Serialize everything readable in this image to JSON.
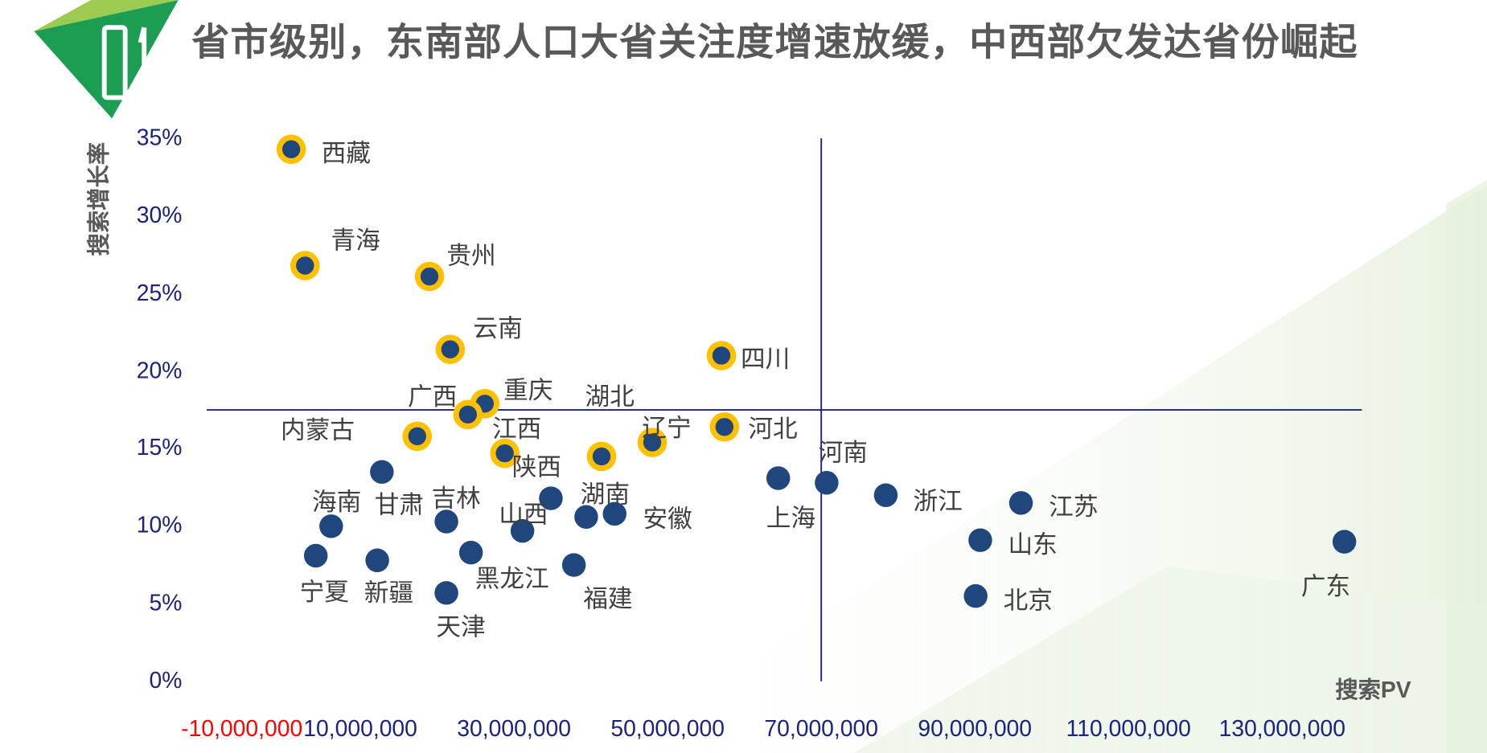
{
  "header": {
    "badge_number": "01",
    "title": "省市级别，东南部人口大省关注度增速放缓，中西部欠发达省份崛起"
  },
  "colors": {
    "dot": "#1f477d",
    "highlight_ring": "#ffc000",
    "axis": "#1a237e",
    "negative_tick": "#ff0000",
    "brand_green": "#1b9e52",
    "brand_light_green": "#9ccb52"
  },
  "chart_data": {
    "type": "scatter",
    "title": "省市级别，东南部人口大省关注度增速放缓，中西部欠发达省份崛起",
    "xlabel": "搜索PV",
    "ylabel": "搜索增长率",
    "xlim": [
      -10000000,
      140000000
    ],
    "ylim": [
      0,
      35
    ],
    "x_ticks": [
      "-10,000,000",
      "10,000,000",
      "30,000,000",
      "50,000,000",
      "70,000,000",
      "90,000,000",
      "110,000,000",
      "130,000,000"
    ],
    "x_tick_values": [
      -10000000,
      10000000,
      30000000,
      50000000,
      70000000,
      90000000,
      110000000,
      130000000
    ],
    "y_ticks": [
      "0%",
      "5%",
      "10%",
      "15%",
      "20%",
      "25%",
      "30%",
      "35%"
    ],
    "y_tick_values": [
      0,
      5,
      10,
      15,
      20,
      25,
      30,
      35
    ],
    "reference_lines": {
      "x": 70000000,
      "y": 17.5
    },
    "points": [
      {
        "name": "西藏",
        "x": 1000000,
        "y": 34.3,
        "highlight": true
      },
      {
        "name": "青海",
        "x": 2800000,
        "y": 26.8,
        "highlight": true
      },
      {
        "name": "贵州",
        "x": 19000000,
        "y": 26.1,
        "highlight": true
      },
      {
        "name": "云南",
        "x": 21700000,
        "y": 21.4,
        "highlight": true
      },
      {
        "name": "四川",
        "x": 57000000,
        "y": 21.0,
        "highlight": true
      },
      {
        "name": "重庆",
        "x": 26200000,
        "y": 17.9,
        "highlight": true
      },
      {
        "name": "广西",
        "x": 24000000,
        "y": 17.2,
        "highlight": true
      },
      {
        "name": "内蒙古",
        "x": 17400000,
        "y": 15.8,
        "highlight": true
      },
      {
        "name": "江西",
        "x": 28800000,
        "y": 14.7,
        "highlight": true
      },
      {
        "name": "湖北",
        "x": 41400000,
        "y": 14.5,
        "highlight": true
      },
      {
        "name": "辽宁",
        "x": 48000000,
        "y": 15.4,
        "highlight": true
      },
      {
        "name": "河北",
        "x": 57400000,
        "y": 16.4,
        "highlight": true
      },
      {
        "name": "甘肃",
        "x": 12800000,
        "y": 13.5,
        "highlight": false
      },
      {
        "name": "海南",
        "x": 6200000,
        "y": 10.0,
        "highlight": false
      },
      {
        "name": "吉林",
        "x": 21200000,
        "y": 10.3,
        "highlight": false
      },
      {
        "name": "山西",
        "x": 31100000,
        "y": 9.7,
        "highlight": false
      },
      {
        "name": "陕西",
        "x": 34800000,
        "y": 11.8,
        "highlight": false
      },
      {
        "name": "湖南",
        "x": 39400000,
        "y": 10.6,
        "highlight": false
      },
      {
        "name": "安徽",
        "x": 43100000,
        "y": 10.8,
        "highlight": false
      },
      {
        "name": "宁夏",
        "x": 4200000,
        "y": 8.1,
        "highlight": false
      },
      {
        "name": "新疆",
        "x": 12200000,
        "y": 7.8,
        "highlight": false
      },
      {
        "name": "黑龙江",
        "x": 24400000,
        "y": 8.3,
        "highlight": false
      },
      {
        "name": "福建",
        "x": 37800000,
        "y": 7.5,
        "highlight": false
      },
      {
        "name": "天津",
        "x": 21200000,
        "y": 5.7,
        "highlight": false
      },
      {
        "name": "上海",
        "x": 64400000,
        "y": 13.1,
        "highlight": false
      },
      {
        "name": "河南",
        "x": 70700000,
        "y": 12.8,
        "highlight": false
      },
      {
        "name": "浙江",
        "x": 78400000,
        "y": 12.0,
        "highlight": false
      },
      {
        "name": "江苏",
        "x": 96000000,
        "y": 11.5,
        "highlight": false
      },
      {
        "name": "山东",
        "x": 90700000,
        "y": 9.1,
        "highlight": false
      },
      {
        "name": "北京",
        "x": 90100000,
        "y": 5.5,
        "highlight": false
      },
      {
        "name": "广东",
        "x": 138100000,
        "y": 9.0,
        "highlight": false
      }
    ],
    "grid": false,
    "legend": "none"
  }
}
